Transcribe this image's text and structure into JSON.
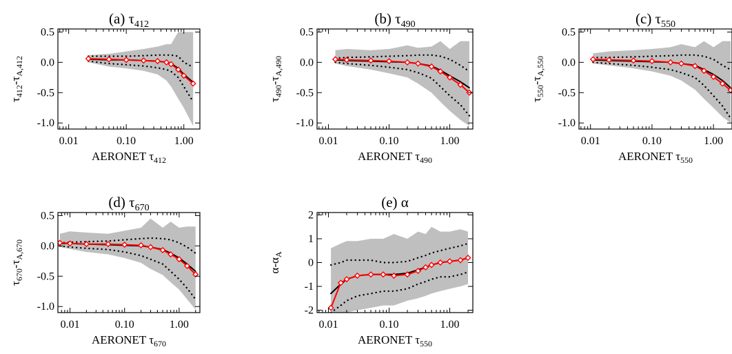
{
  "figure": {
    "colors": {
      "band": "#bfbfbf",
      "median_line": "#000000",
      "quantile_line": "#000000",
      "mean_line": "#ff0000",
      "mean_marker": "#ff0000"
    }
  },
  "chart_data": [
    {
      "type": "line",
      "title": "(a) τ",
      "title_sub": "412",
      "xlabel": "AERONET τ",
      "xlabel_sub": "412",
      "ylabel": "τ",
      "ylabel_sub": "412",
      "ylabel_mid": "-τ",
      "ylabel_sub2": "A,412",
      "x_scale": "log",
      "xlim": [
        0.0065,
        1.9
      ],
      "ylim": [
        -1.1,
        0.55
      ],
      "xticks": [
        0.01,
        0.1,
        1.0
      ],
      "xtick_labels": [
        "0.01",
        "0.10",
        "1.00"
      ],
      "yticks": [
        0.5,
        0.0,
        -0.5,
        -1.0
      ],
      "ytick_labels": [
        "0.5",
        "0.0",
        "-0.5",
        "-1.0"
      ],
      "x": [
        0.022,
        0.05,
        0.1,
        0.2,
        0.35,
        0.5,
        0.6,
        0.8,
        1.0,
        1.45
      ],
      "band_upper": [
        0.12,
        0.14,
        0.18,
        0.22,
        0.26,
        0.3,
        0.3,
        0.5,
        0.5,
        0.5
      ],
      "band_lower": [
        0.0,
        -0.07,
        -0.1,
        -0.14,
        -0.2,
        -0.3,
        -0.4,
        -0.6,
        -0.75,
        -1.05
      ],
      "upper_quantile": [
        0.1,
        0.1,
        0.1,
        0.11,
        0.12,
        0.12,
        0.12,
        0.1,
        0.0,
        -0.08
      ],
      "lower_quantile": [
        0.02,
        -0.02,
        -0.04,
        -0.06,
        -0.09,
        -0.12,
        -0.15,
        -0.25,
        -0.4,
        -0.65
      ],
      "median": [
        0.05,
        0.04,
        0.04,
        0.03,
        0.02,
        0.0,
        -0.02,
        -0.1,
        -0.2,
        -0.33
      ],
      "mean": [
        0.06,
        0.05,
        0.04,
        0.03,
        0.02,
        0.0,
        -0.03,
        -0.12,
        -0.22,
        -0.35
      ]
    },
    {
      "type": "line",
      "title": "(b) τ",
      "title_sub": "490",
      "xlabel": "AERONET τ",
      "xlabel_sub": "490",
      "ylabel": "τ",
      "ylabel_sub": "490",
      "ylabel_mid": "-τ",
      "ylabel_sub2": "A,490",
      "x_scale": "log",
      "xlim": [
        0.0065,
        2.4
      ],
      "ylim": [
        -1.1,
        0.55
      ],
      "xticks": [
        0.01,
        0.1,
        1.0
      ],
      "xtick_labels": [
        "0.01",
        "0.10",
        "1.00"
      ],
      "yticks": [
        0.5,
        0.0,
        -0.5,
        -1.0
      ],
      "ytick_labels": [
        "0.5",
        "0.0",
        "-0.5",
        "-1.0"
      ],
      "x": [
        0.013,
        0.02,
        0.05,
        0.1,
        0.2,
        0.3,
        0.5,
        0.7,
        1.0,
        1.5,
        2.1
      ],
      "band_upper": [
        0.2,
        0.22,
        0.2,
        0.22,
        0.28,
        0.24,
        0.26,
        0.35,
        0.22,
        0.35,
        0.35
      ],
      "band_lower": [
        -0.02,
        -0.06,
        -0.12,
        -0.18,
        -0.25,
        -0.35,
        -0.5,
        -0.65,
        -0.8,
        -0.95,
        -1.05
      ],
      "upper_quantile": [
        0.07,
        0.08,
        0.09,
        0.1,
        0.11,
        0.12,
        0.12,
        0.1,
        0.05,
        -0.05,
        -0.15
      ],
      "lower_quantile": [
        0.0,
        -0.02,
        -0.05,
        -0.08,
        -0.12,
        -0.17,
        -0.26,
        -0.4,
        -0.55,
        -0.7,
        -0.88
      ],
      "median": [
        0.04,
        0.03,
        0.02,
        0.01,
        0.0,
        -0.02,
        -0.06,
        -0.13,
        -0.22,
        -0.32,
        -0.42
      ],
      "mean": [
        0.05,
        0.04,
        0.03,
        0.02,
        0.0,
        -0.02,
        -0.07,
        -0.15,
        -0.25,
        -0.37,
        -0.5
      ]
    },
    {
      "type": "line",
      "title": "(c) τ",
      "title_sub": "550",
      "xlabel": "AERONET τ",
      "xlabel_sub": "550",
      "ylabel": "τ",
      "ylabel_sub": "550",
      "ylabel_mid": "-τ",
      "ylabel_sub2": "A,550",
      "x_scale": "log",
      "xlim": [
        0.0065,
        2.0
      ],
      "ylim": [
        -1.1,
        0.55
      ],
      "xticks": [
        0.01,
        0.1,
        1.0
      ],
      "xtick_labels": [
        "0.01",
        "0.10",
        "1.00"
      ],
      "yticks": [
        0.5,
        0.0,
        -0.5,
        -1.0
      ],
      "ytick_labels": [
        "0.5",
        "0.0",
        "-0.5",
        "-1.0"
      ],
      "x": [
        0.011,
        0.02,
        0.05,
        0.1,
        0.2,
        0.3,
        0.5,
        0.7,
        1.0,
        1.4,
        1.9
      ],
      "band_upper": [
        0.15,
        0.18,
        0.2,
        0.22,
        0.25,
        0.3,
        0.25,
        0.35,
        0.25,
        0.35,
        0.35
      ],
      "band_lower": [
        -0.02,
        -0.05,
        -0.1,
        -0.15,
        -0.22,
        -0.3,
        -0.45,
        -0.6,
        -0.75,
        -0.9,
        -1.0
      ],
      "upper_quantile": [
        0.08,
        0.08,
        0.09,
        0.1,
        0.11,
        0.12,
        0.12,
        0.1,
        0.05,
        -0.05,
        -0.12
      ],
      "lower_quantile": [
        0.0,
        -0.02,
        -0.05,
        -0.08,
        -0.12,
        -0.17,
        -0.25,
        -0.38,
        -0.55,
        -0.72,
        -0.92
      ],
      "median": [
        0.04,
        0.03,
        0.02,
        0.01,
        0.0,
        -0.02,
        -0.05,
        -0.12,
        -0.2,
        -0.3,
        -0.42
      ],
      "mean": [
        0.05,
        0.04,
        0.03,
        0.02,
        0.0,
        -0.02,
        -0.06,
        -0.14,
        -0.24,
        -0.35,
        -0.46
      ]
    },
    {
      "type": "line",
      "title": "(d) τ",
      "title_sub": "670",
      "xlabel": "AERONET τ",
      "xlabel_sub": "670",
      "ylabel": "τ",
      "ylabel_sub": "670",
      "ylabel_mid": "-τ",
      "ylabel_sub2": "A,670",
      "x_scale": "log",
      "xlim": [
        0.006,
        2.4
      ],
      "ylim": [
        -1.1,
        0.55
      ],
      "xticks": [
        0.01,
        0.1,
        1.0
      ],
      "xtick_labels": [
        "0.01",
        "0.10",
        "1.00"
      ],
      "yticks": [
        0.5,
        0.0,
        -0.5,
        -1.0
      ],
      "ytick_labels": [
        "0.5",
        "0.0",
        "-0.5",
        "-1.0"
      ],
      "x": [
        0.0065,
        0.01,
        0.02,
        0.05,
        0.1,
        0.2,
        0.3,
        0.5,
        0.7,
        1.0,
        1.4,
        2.0
      ],
      "band_upper": [
        0.2,
        0.24,
        0.22,
        0.2,
        0.25,
        0.3,
        0.45,
        0.3,
        0.4,
        0.3,
        0.32,
        0.32
      ],
      "band_lower": [
        -0.02,
        -0.05,
        -0.1,
        -0.14,
        -0.2,
        -0.28,
        -0.38,
        -0.48,
        -0.6,
        -0.72,
        -0.88,
        -1.05
      ],
      "upper_quantile": [
        0.05,
        0.06,
        0.07,
        0.08,
        0.1,
        0.12,
        0.13,
        0.12,
        0.1,
        0.05,
        -0.02,
        -0.12
      ],
      "lower_quantile": [
        0.0,
        -0.02,
        -0.04,
        -0.06,
        -0.1,
        -0.16,
        -0.22,
        -0.3,
        -0.42,
        -0.55,
        -0.7,
        -0.88
      ],
      "median": [
        0.04,
        0.04,
        0.03,
        0.02,
        0.01,
        0.0,
        -0.02,
        -0.06,
        -0.12,
        -0.2,
        -0.3,
        -0.42
      ],
      "mean": [
        0.05,
        0.04,
        0.03,
        0.03,
        0.02,
        0.01,
        -0.02,
        -0.07,
        -0.14,
        -0.22,
        -0.33,
        -0.47
      ]
    },
    {
      "type": "line",
      "title": "(e) α",
      "title_sub": "",
      "xlabel": "AERONET τ",
      "xlabel_sub": "550",
      "ylabel": "α-α",
      "ylabel_sub": "A",
      "ylabel_mid": "",
      "ylabel_sub2": "",
      "x_scale": "log",
      "xlim": [
        0.0065,
        2.4
      ],
      "ylim": [
        -2.1,
        2.1
      ],
      "xticks": [
        0.01,
        0.1,
        1.0
      ],
      "xtick_labels": [
        "0.01",
        "0.10",
        "1.00"
      ],
      "yticks": [
        2,
        1,
        0,
        -1,
        -2
      ],
      "ytick_labels": [
        "2",
        "1",
        "0",
        "-1",
        "-2"
      ],
      "x": [
        0.011,
        0.016,
        0.02,
        0.03,
        0.05,
        0.08,
        0.12,
        0.2,
        0.3,
        0.4,
        0.5,
        0.7,
        1.0,
        1.5,
        2.0
      ],
      "band_upper": [
        0.6,
        0.8,
        0.9,
        0.9,
        1.0,
        1.0,
        1.2,
        1.0,
        1.3,
        1.2,
        1.5,
        1.3,
        1.3,
        1.4,
        1.3
      ],
      "band_lower": [
        -2.1,
        -2.1,
        -2.1,
        -2.0,
        -1.9,
        -1.8,
        -1.8,
        -1.6,
        -1.5,
        -1.4,
        -1.3,
        -1.2,
        -1.1,
        -1.0,
        -0.9
      ],
      "upper_quantile": [
        -0.1,
        0.0,
        0.1,
        0.1,
        0.1,
        0.0,
        0.0,
        0.05,
        0.2,
        0.3,
        0.4,
        0.5,
        0.6,
        0.7,
        0.8
      ],
      "lower_quantile": [
        -2.1,
        -1.8,
        -1.6,
        -1.4,
        -1.3,
        -1.2,
        -1.2,
        -1.1,
        -0.9,
        -0.8,
        -0.7,
        -0.6,
        -0.6,
        -0.5,
        -0.4
      ],
      "median": [
        -1.3,
        -0.9,
        -0.7,
        -0.55,
        -0.5,
        -0.5,
        -0.5,
        -0.45,
        -0.3,
        -0.2,
        -0.1,
        0.0,
        0.05,
        0.1,
        0.2
      ],
      "mean": [
        -1.9,
        -0.85,
        -0.7,
        -0.55,
        -0.5,
        -0.5,
        -0.55,
        -0.5,
        -0.35,
        -0.2,
        -0.1,
        0.0,
        0.05,
        0.1,
        0.2
      ]
    }
  ]
}
